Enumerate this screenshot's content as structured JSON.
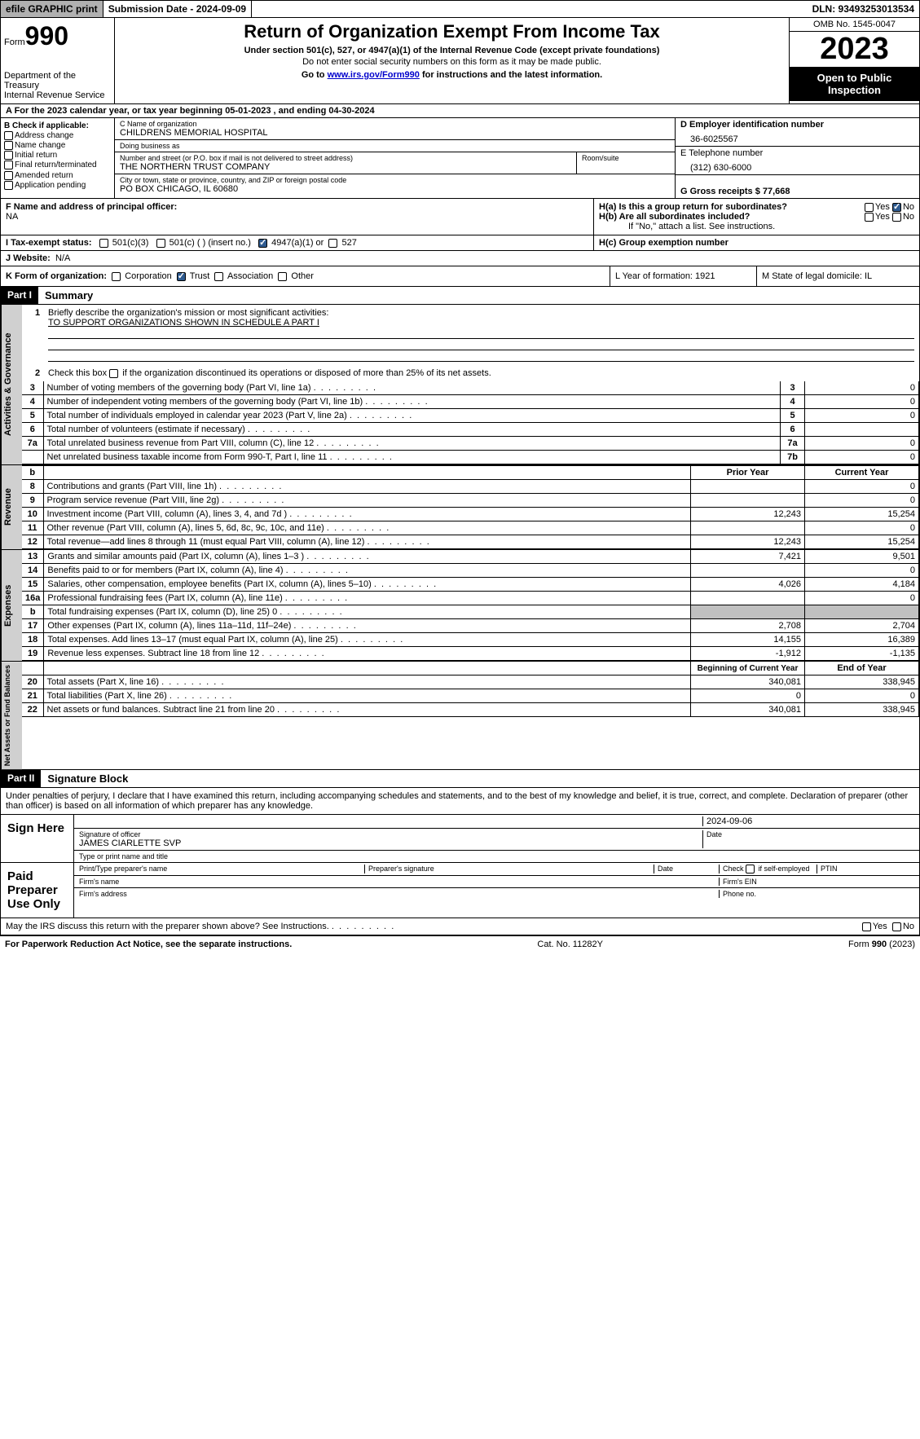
{
  "topbar": {
    "efile": "efile GRAPHIC print",
    "submission": "Submission Date - 2024-09-09",
    "dln": "DLN: 93493253013534"
  },
  "header": {
    "form_prefix": "Form",
    "form_number": "990",
    "dept": "Department of the Treasury\nInternal Revenue Service",
    "title": "Return of Organization Exempt From Income Tax",
    "subtitle": "Under section 501(c), 527, or 4947(a)(1) of the Internal Revenue Code (except private foundations)",
    "notice": "Do not enter social security numbers on this form as it may be made public.",
    "goto_prefix": "Go to ",
    "goto_link": "www.irs.gov/Form990",
    "goto_suffix": " for instructions and the latest information.",
    "omb": "OMB No. 1545-0047",
    "year": "2023",
    "inspection": "Open to Public Inspection"
  },
  "row_a": "A For the 2023 calendar year, or tax year beginning 05-01-2023   , and ending 04-30-2024",
  "col_b": {
    "header": "B Check if applicable:",
    "opts": [
      "Address change",
      "Name change",
      "Initial return",
      "Final return/terminated",
      "Amended return",
      "Application pending"
    ]
  },
  "org": {
    "name_lbl": "C Name of organization",
    "name": "CHILDRENS MEMORIAL HOSPITAL",
    "dba_lbl": "Doing business as",
    "dba": "",
    "street_lbl": "Number and street (or P.O. box if mail is not delivered to street address)",
    "street": "THE NORTHERN TRUST COMPANY",
    "room_lbl": "Room/suite",
    "city_lbl": "City or town, state or province, country, and ZIP or foreign postal code",
    "city": "PO BOX CHICAGO, IL  60680"
  },
  "right": {
    "ein_lbl": "D Employer identification number",
    "ein": "36-6025567",
    "phone_lbl": "E Telephone number",
    "phone": "(312) 630-6000",
    "gross_lbl": "G Gross receipts $ 77,668"
  },
  "officer": {
    "lbl": "F  Name and address of principal officer:",
    "val": "NA"
  },
  "h": {
    "a": "H(a)  Is this a group return for subordinates?",
    "b": "H(b)  Are all subordinates included?",
    "note": "If \"No,\" attach a list. See instructions.",
    "c": "H(c)  Group exemption number",
    "yes": "Yes",
    "no": "No"
  },
  "i": {
    "lbl": "I  Tax-exempt status:",
    "opts": [
      "501(c)(3)",
      "501(c) (  ) (insert no.)",
      "4947(a)(1) or",
      "527"
    ]
  },
  "j": {
    "lbl": "J  Website:",
    "val": "N/A"
  },
  "k": {
    "lbl": "K Form of organization:",
    "opts": [
      "Corporation",
      "Trust",
      "Association",
      "Other"
    ]
  },
  "l": {
    "lbl": "L Year of formation: 1921"
  },
  "m": {
    "lbl": "M State of legal domicile: IL"
  },
  "part1": {
    "hdr": "Part I",
    "title": "Summary"
  },
  "summary": {
    "line1_lbl": "Briefly describe the organization's mission or most significant activities:",
    "line1_val": "TO SUPPORT ORGANIZATIONS SHOWN IN SCHEDULE A PART I",
    "line2": "Check this box       if the organization discontinued its operations or disposed of more than 25% of its net assets.",
    "lines": [
      {
        "n": "3",
        "d": "Number of voting members of the governing body (Part VI, line 1a)",
        "box": "3",
        "v": "0"
      },
      {
        "n": "4",
        "d": "Number of independent voting members of the governing body (Part VI, line 1b)",
        "box": "4",
        "v": "0"
      },
      {
        "n": "5",
        "d": "Total number of individuals employed in calendar year 2023 (Part V, line 2a)",
        "box": "5",
        "v": "0"
      },
      {
        "n": "6",
        "d": "Total number of volunteers (estimate if necessary)",
        "box": "6",
        "v": ""
      },
      {
        "n": "7a",
        "d": "Total unrelated business revenue from Part VIII, column (C), line 12",
        "box": "7a",
        "v": "0"
      },
      {
        "n": "",
        "d": "Net unrelated business taxable income from Form 990-T, Part I, line 11",
        "box": "7b",
        "v": "0"
      }
    ],
    "col_hdr_b": "b",
    "prior": "Prior Year",
    "current": "Current Year",
    "rev": [
      {
        "n": "8",
        "d": "Contributions and grants (Part VIII, line 1h)",
        "p": "",
        "c": "0"
      },
      {
        "n": "9",
        "d": "Program service revenue (Part VIII, line 2g)",
        "p": "",
        "c": "0"
      },
      {
        "n": "10",
        "d": "Investment income (Part VIII, column (A), lines 3, 4, and 7d )",
        "p": "12,243",
        "c": "15,254"
      },
      {
        "n": "11",
        "d": "Other revenue (Part VIII, column (A), lines 5, 6d, 8c, 9c, 10c, and 11e)",
        "p": "",
        "c": "0"
      },
      {
        "n": "12",
        "d": "Total revenue—add lines 8 through 11 (must equal Part VIII, column (A), line 12)",
        "p": "12,243",
        "c": "15,254"
      }
    ],
    "exp": [
      {
        "n": "13",
        "d": "Grants and similar amounts paid (Part IX, column (A), lines 1–3 )",
        "p": "7,421",
        "c": "9,501"
      },
      {
        "n": "14",
        "d": "Benefits paid to or for members (Part IX, column (A), line 4)",
        "p": "",
        "c": "0"
      },
      {
        "n": "15",
        "d": "Salaries, other compensation, employee benefits (Part IX, column (A), lines 5–10)",
        "p": "4,026",
        "c": "4,184"
      },
      {
        "n": "16a",
        "d": "Professional fundraising fees (Part IX, column (A), line 11e)",
        "p": "",
        "c": "0"
      },
      {
        "n": "b",
        "d": "Total fundraising expenses (Part IX, column (D), line 25) 0",
        "p": "shade",
        "c": "shade"
      },
      {
        "n": "17",
        "d": "Other expenses (Part IX, column (A), lines 11a–11d, 11f–24e)",
        "p": "2,708",
        "c": "2,704"
      },
      {
        "n": "18",
        "d": "Total expenses. Add lines 13–17 (must equal Part IX, column (A), line 25)",
        "p": "14,155",
        "c": "16,389"
      },
      {
        "n": "19",
        "d": "Revenue less expenses. Subtract line 18 from line 12",
        "p": "-1,912",
        "c": "-1,135"
      }
    ],
    "begin": "Beginning of Current Year",
    "end": "End of Year",
    "net": [
      {
        "n": "20",
        "d": "Total assets (Part X, line 16)",
        "p": "340,081",
        "c": "338,945"
      },
      {
        "n": "21",
        "d": "Total liabilities (Part X, line 26)",
        "p": "0",
        "c": "0"
      },
      {
        "n": "22",
        "d": "Net assets or fund balances. Subtract line 21 from line 20",
        "p": "340,081",
        "c": "338,945"
      }
    ]
  },
  "vtabs": {
    "gov": "Activities & Governance",
    "rev": "Revenue",
    "exp": "Expenses",
    "net": "Net Assets or Fund Balances"
  },
  "part2": {
    "hdr": "Part II",
    "title": "Signature Block"
  },
  "sig": {
    "decl": "Under penalties of perjury, I declare that I have examined this return, including accompanying schedules and statements, and to the best of my knowledge and belief, it is true, correct, and complete. Declaration of preparer (other than officer) is based on all information of which preparer has any knowledge.",
    "sign_here": "Sign Here",
    "date": "2024-09-06",
    "sig_lbl": "Signature of officer",
    "name": "JAMES CIARLETTE  SVP",
    "name_lbl": "Type or print name and title",
    "date_lbl": "Date",
    "paid": "Paid Preparer Use Only",
    "prep_name": "Print/Type preparer's name",
    "prep_sig": "Preparer's signature",
    "prep_date": "Date",
    "self_emp": "Check       if self-employed",
    "ptin": "PTIN",
    "firm_name": "Firm's name",
    "firm_ein": "Firm's EIN",
    "firm_addr": "Firm's address",
    "firm_phone": "Phone no.",
    "discuss": "May the IRS discuss this return with the preparer shown above? See Instructions."
  },
  "footer": {
    "left": "For Paperwork Reduction Act Notice, see the separate instructions.",
    "mid": "Cat. No. 11282Y",
    "right": "Form 990 (2023)"
  }
}
